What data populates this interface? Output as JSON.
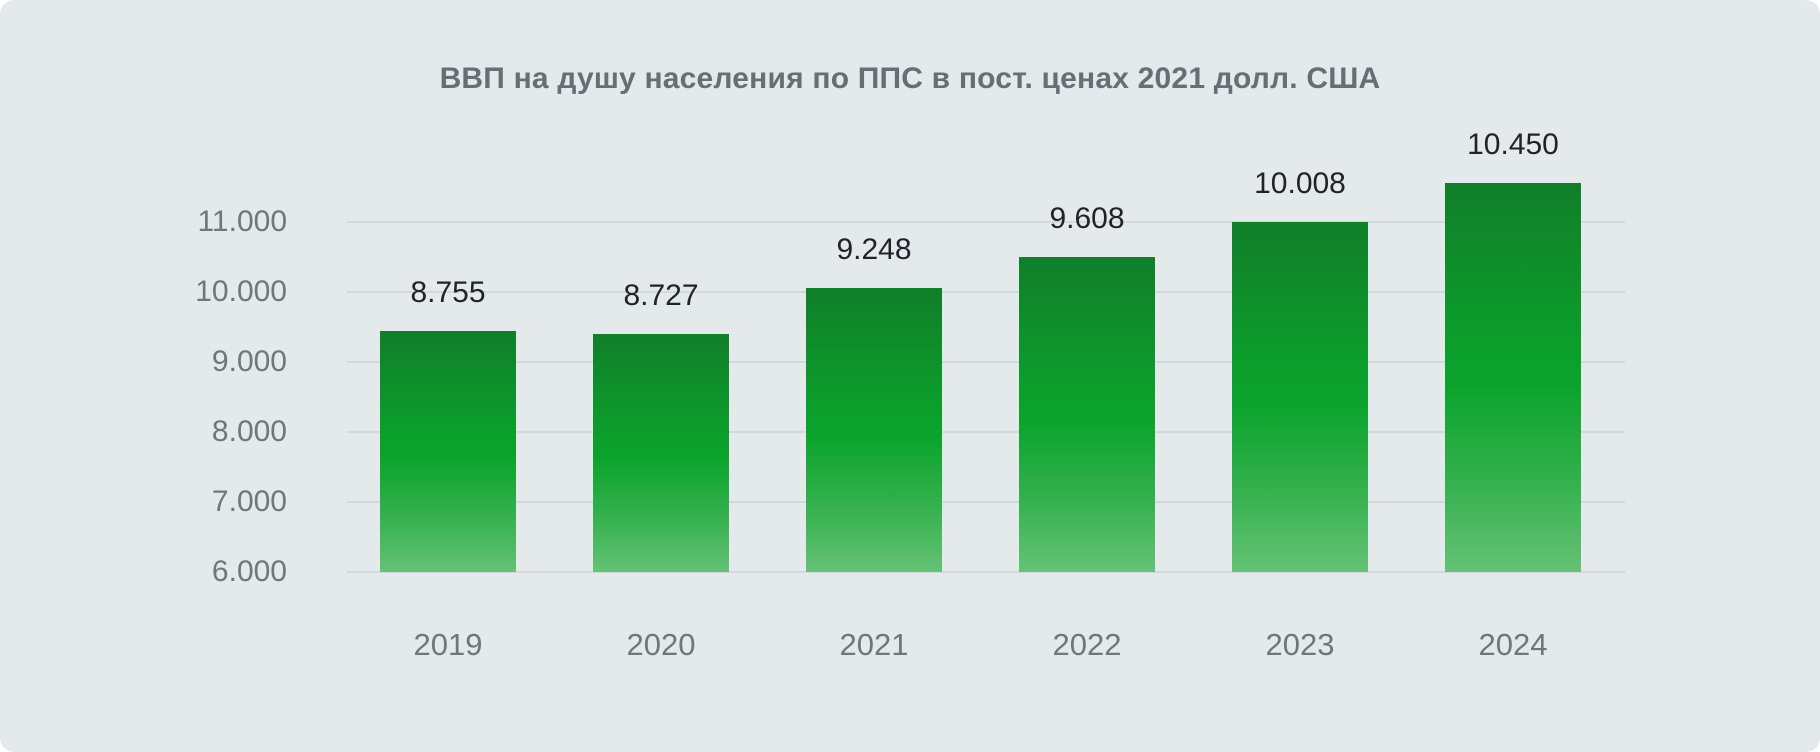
{
  "card": {
    "title": "ВВП на душу населения по ППС в пост. ценах 2021 долл. США"
  },
  "chart_data": {
    "type": "bar",
    "title": "ВВП на душу населения по ППС в пост. ценах 2021 долл. США",
    "categories": [
      "2019",
      "2020",
      "2021",
      "2022",
      "2023",
      "2024"
    ],
    "values": [
      8755,
      8727,
      9248,
      9608,
      10008,
      10450
    ],
    "value_labels": [
      "8.755",
      "8.727",
      "9.248",
      "9.608",
      "10.008",
      "10.450"
    ],
    "xlabel": "",
    "ylabel": "",
    "y_axis": {
      "min": 6000,
      "max": 11000,
      "ticks": [
        6000,
        7000,
        8000,
        9000,
        10000,
        11000
      ],
      "tick_labels": [
        "6.000",
        "7.000",
        "8.000",
        "9.000",
        "10.000",
        "11.000"
      ]
    },
    "grid": true,
    "legend": false,
    "colors": {
      "background": "#e4e9ec",
      "gridline": "#d2d8db",
      "axis_text": "#6f767c",
      "value_text": "#202428",
      "title_text": "#676e75",
      "bar_gradient_top": "#117e2a",
      "bar_gradient_mid": "#0aa42c",
      "bar_gradient_bottom": "#65c276"
    }
  }
}
